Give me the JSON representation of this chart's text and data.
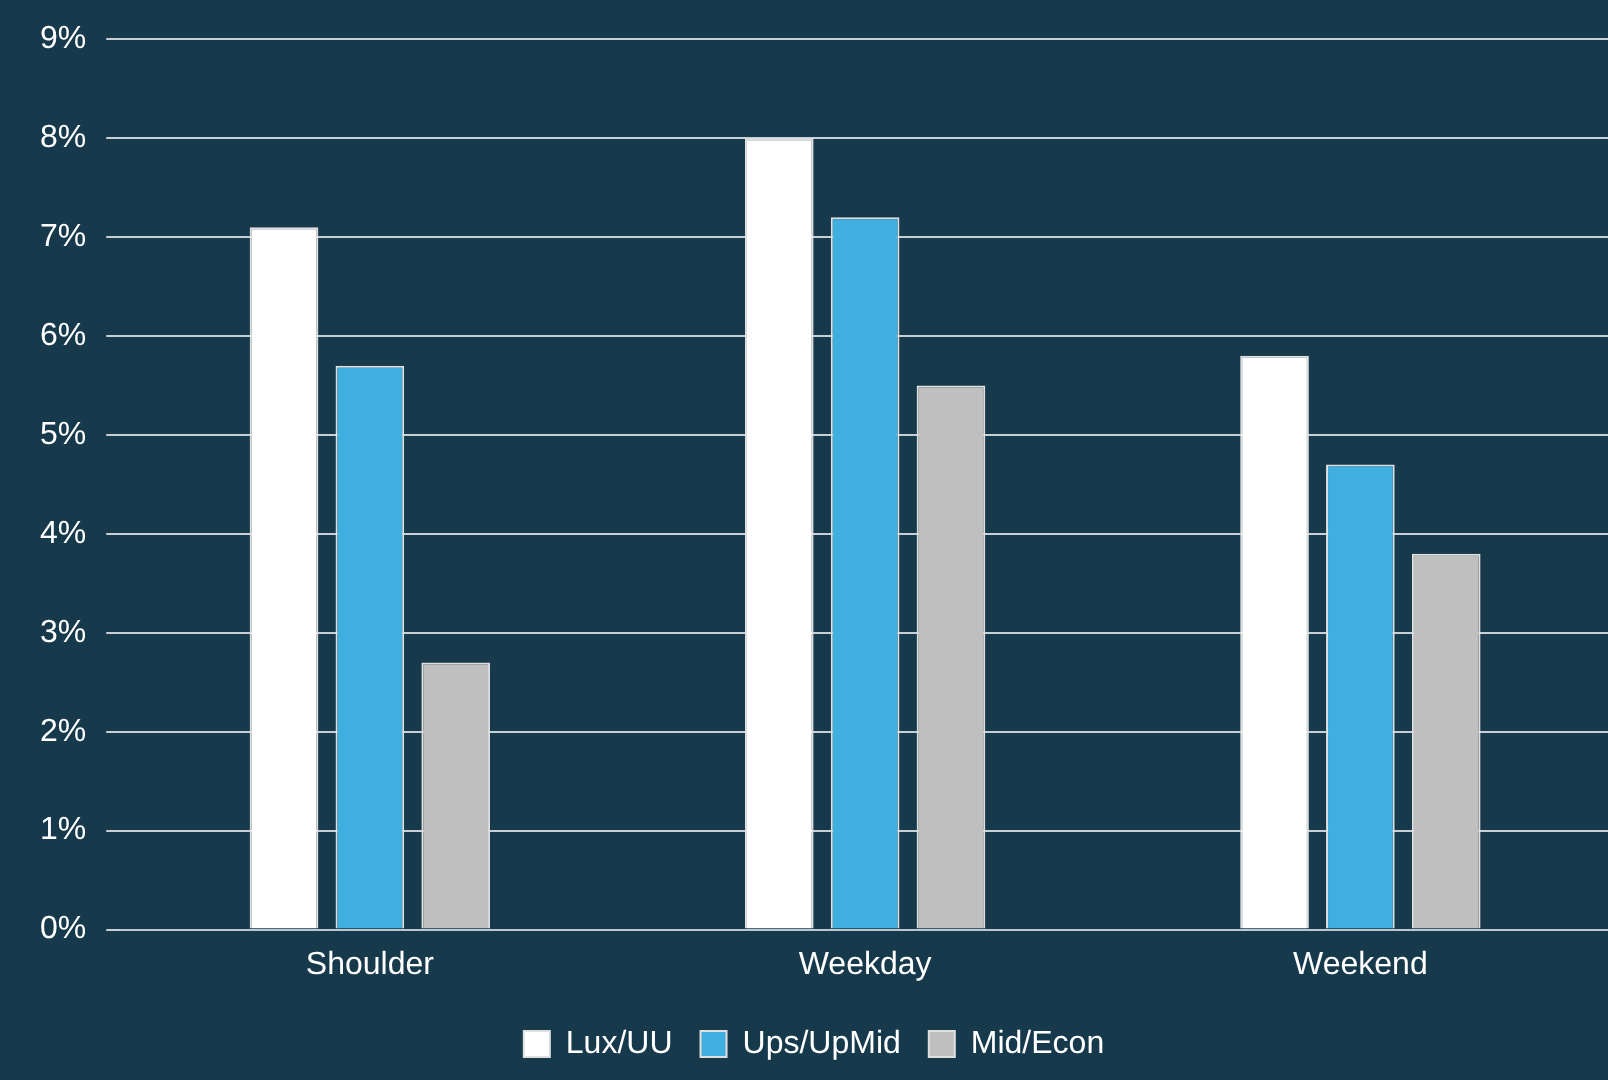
{
  "chart_data": {
    "type": "bar",
    "categories": [
      "Shoulder",
      "Weekday",
      "Weekend"
    ],
    "series": [
      {
        "name": "Lux/UU",
        "color": "#ffffff",
        "values": [
          7.1,
          8.0,
          5.8
        ]
      },
      {
        "name": "Ups/UpMid",
        "color": "#41aee0",
        "values": [
          5.7,
          7.2,
          4.7
        ]
      },
      {
        "name": "Mid/Econ",
        "color": "#bfbfbf",
        "values": [
          2.7,
          5.5,
          3.8
        ]
      }
    ],
    "ylim": [
      0,
      9
    ],
    "yticks": [
      {
        "value": 0,
        "label": "0%"
      },
      {
        "value": 1,
        "label": "1%"
      },
      {
        "value": 2,
        "label": "2%"
      },
      {
        "value": 3,
        "label": "3%"
      },
      {
        "value": 4,
        "label": "4%"
      },
      {
        "value": 5,
        "label": "5%"
      },
      {
        "value": 6,
        "label": "6%"
      },
      {
        "value": 7,
        "label": "7%"
      },
      {
        "value": 8,
        "label": "8%"
      },
      {
        "value": 9,
        "label": "9%"
      }
    ],
    "grid": "y",
    "legend": "bottom"
  }
}
